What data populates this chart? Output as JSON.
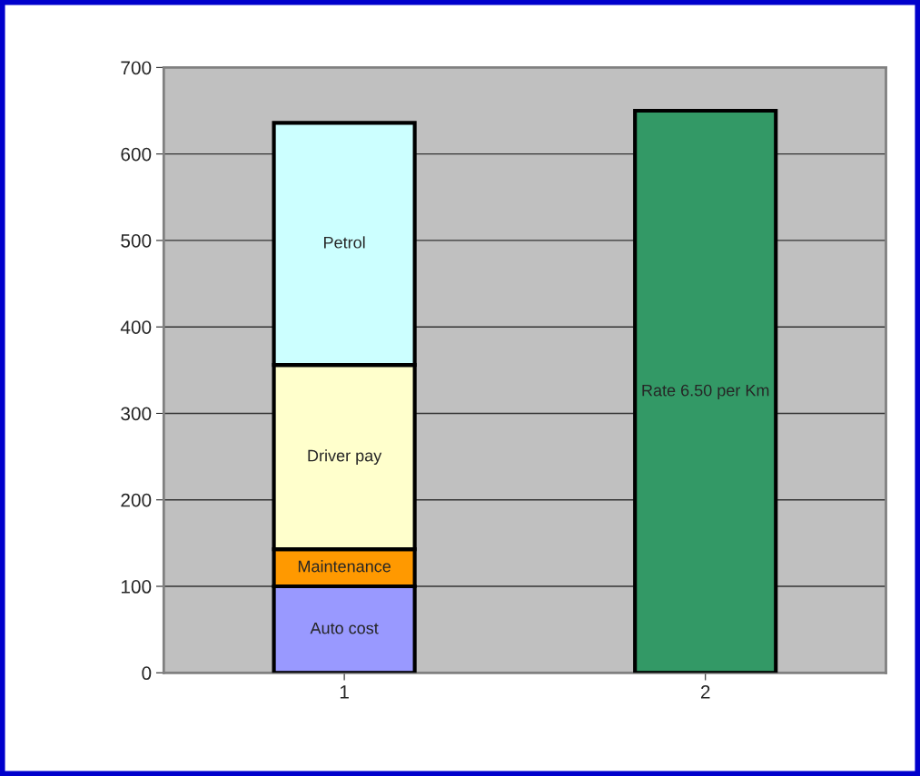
{
  "chart_data": {
    "type": "bar",
    "stacked": true,
    "categories": [
      "1",
      "2"
    ],
    "series": [
      {
        "name": "Auto cost",
        "color": "#9999ff",
        "values": [
          100,
          null
        ]
      },
      {
        "name": "Maintenance",
        "color": "#ff9900",
        "values": [
          43,
          null
        ]
      },
      {
        "name": "Driver pay",
        "color": "#ffffcc",
        "values": [
          213,
          null
        ]
      },
      {
        "name": "Petrol",
        "color": "#ccffff",
        "values": [
          280,
          null
        ]
      },
      {
        "name": "Rate 6.50 per Km",
        "color": "#339966",
        "values": [
          null,
          650
        ]
      }
    ],
    "ylim": [
      0,
      700
    ],
    "yticks": [
      0,
      100,
      200,
      300,
      400,
      500,
      600,
      700
    ],
    "grid": "y",
    "legend": false
  }
}
